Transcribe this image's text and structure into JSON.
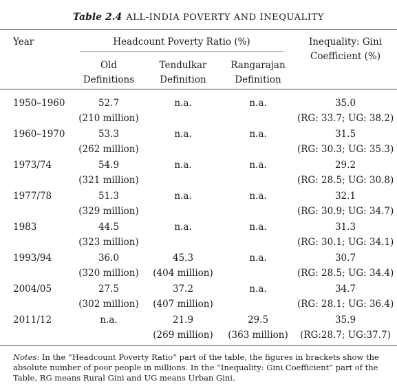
{
  "caption": {
    "number": "Table 2.4",
    "title": "ALL-INDIA POVERTY AND INEQUALITY"
  },
  "headers": {
    "year": "Year",
    "headcount_group": "Headcount Poverty Ratio (%)",
    "old_line1": "Old",
    "old_line2": "Definitions",
    "tendulkar_line1": "Tendulkar",
    "tendulkar_line2": "Definition",
    "rangarajan_line1": "Rangarajan",
    "rangarajan_line2": "Definition",
    "gini_line1": "Inequality: Gini",
    "gini_line2": "Coefficient (%)"
  },
  "rows": [
    {
      "year": "1950–1960",
      "old": "52.7",
      "old_m": "(210 million)",
      "tend": "n.a.",
      "tend_m": "",
      "rang": "n.a.",
      "rang_m": "",
      "gini": "35.0",
      "gini_detail": "(RG: 33.7; UG: 38.2)"
    },
    {
      "year": "1960–1970",
      "old": "53.3",
      "old_m": "(262 million)",
      "tend": "n.a.",
      "tend_m": "",
      "rang": "n.a.",
      "rang_m": "",
      "gini": "31.5",
      "gini_detail": "(RG: 30.3; UG: 35.3)"
    },
    {
      "year": "1973/74",
      "old": "54.9",
      "old_m": "(321 million)",
      "tend": "n.a.",
      "tend_m": "",
      "rang": "n.a.",
      "rang_m": "",
      "gini": "29.2",
      "gini_detail": "(RG: 28.5; UG: 30.8)"
    },
    {
      "year": "1977/78",
      "old": "51.3",
      "old_m": "(329 million)",
      "tend": "n.a.",
      "tend_m": "",
      "rang": "n.a.",
      "rang_m": "",
      "gini": "32.1",
      "gini_detail": "(RG: 30.9; UG: 34.7)"
    },
    {
      "year": "1983",
      "old": "44.5",
      "old_m": "(323 million)",
      "tend": "n.a.",
      "tend_m": "",
      "rang": "n.a.",
      "rang_m": "",
      "gini": "31.3",
      "gini_detail": "(RG: 30.1; UG: 34.1)"
    },
    {
      "year": "1993/94",
      "old": "36.0",
      "old_m": "(320 million)",
      "tend": "45.3",
      "tend_m": "(404 million)",
      "rang": "n.a.",
      "rang_m": "",
      "gini": "30.7",
      "gini_detail": "(RG: 28.5; UG: 34.4)"
    },
    {
      "year": "2004/05",
      "old": "27.5",
      "old_m": "(302 million)",
      "tend": "37.2",
      "tend_m": "(407 million)",
      "rang": "n.a.",
      "rang_m": "",
      "gini": "34.7",
      "gini_detail": "(RG: 28.1; UG: 36.4)"
    },
    {
      "year": "2011/12",
      "old": "n.a.",
      "old_m": "",
      "tend": "21.9",
      "tend_m": "(269 million)",
      "rang": "29.5",
      "rang_m": "(363 million)",
      "gini": "35.9",
      "gini_detail": "(RG:28.7; UG:37.7)"
    }
  ],
  "notes": {
    "label": "Notes",
    "text": ": In the “Headcount Poverty Ratio” part of the table, the figures in brackets show the absolute number of poor people in millions. In the “Inequality: Gini Coefficient” part of the Table, RG means Rural Gini and UG means Urban Gini."
  }
}
